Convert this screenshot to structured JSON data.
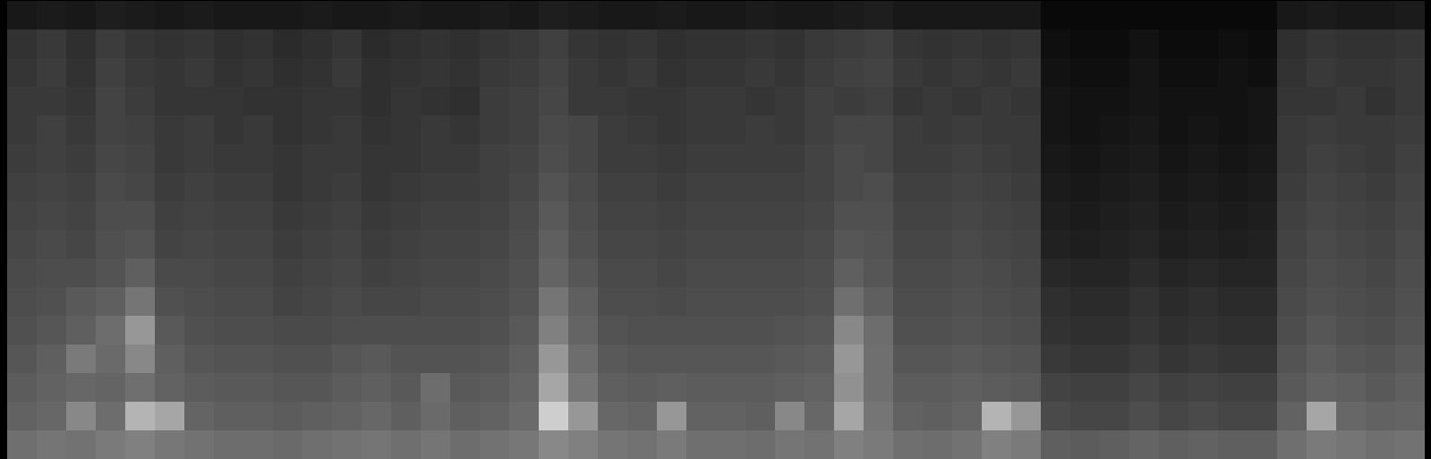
{
  "chart_data": {
    "type": "heatmap",
    "tick_labels": false,
    "color": "greys",
    "zlim": [
      0,
      1
    ],
    "cells": [
      [
        0.08,
        0.09,
        0.08,
        0.1,
        0.09,
        0.08,
        0.09,
        0.08,
        0.08,
        0.08,
        0.09,
        0.08,
        0.08,
        0.09,
        0.08,
        0.08,
        0.09,
        0.08,
        0.1,
        0.09,
        0.08,
        0.08,
        0.09,
        0.08,
        0.08,
        0.09,
        0.08,
        0.08,
        0.09,
        0.1,
        0.08,
        0.08,
        0.08,
        0.08,
        0.08,
        0.03,
        0.03,
        0.03,
        0.03,
        0.03,
        0.03,
        0.03,
        0.03,
        0.08,
        0.09,
        0.08,
        0.08,
        0.09
      ],
      [
        0.16,
        0.18,
        0.15,
        0.19,
        0.17,
        0.16,
        0.17,
        0.15,
        0.16,
        0.14,
        0.15,
        0.17,
        0.14,
        0.15,
        0.16,
        0.15,
        0.17,
        0.18,
        0.2,
        0.17,
        0.16,
        0.17,
        0.15,
        0.16,
        0.16,
        0.17,
        0.16,
        0.18,
        0.19,
        0.2,
        0.17,
        0.16,
        0.17,
        0.16,
        0.17,
        0.05,
        0.04,
        0.04,
        0.06,
        0.04,
        0.04,
        0.05,
        0.04,
        0.15,
        0.17,
        0.16,
        0.16,
        0.17
      ],
      [
        0.17,
        0.19,
        0.16,
        0.2,
        0.18,
        0.17,
        0.18,
        0.16,
        0.17,
        0.15,
        0.16,
        0.18,
        0.15,
        0.16,
        0.17,
        0.16,
        0.18,
        0.19,
        0.21,
        0.18,
        0.17,
        0.18,
        0.16,
        0.17,
        0.17,
        0.18,
        0.17,
        0.19,
        0.2,
        0.21,
        0.18,
        0.17,
        0.18,
        0.17,
        0.18,
        0.06,
        0.05,
        0.05,
        0.07,
        0.05,
        0.05,
        0.06,
        0.05,
        0.16,
        0.18,
        0.17,
        0.17,
        0.18
      ],
      [
        0.18,
        0.18,
        0.17,
        0.21,
        0.19,
        0.17,
        0.17,
        0.17,
        0.16,
        0.16,
        0.17,
        0.17,
        0.15,
        0.17,
        0.16,
        0.15,
        0.19,
        0.2,
        0.22,
        0.18,
        0.18,
        0.17,
        0.17,
        0.18,
        0.18,
        0.17,
        0.18,
        0.2,
        0.19,
        0.2,
        0.17,
        0.18,
        0.17,
        0.18,
        0.17,
        0.07,
        0.06,
        0.06,
        0.07,
        0.06,
        0.06,
        0.06,
        0.07,
        0.17,
        0.17,
        0.18,
        0.16,
        0.18
      ],
      [
        0.18,
        0.2,
        0.18,
        0.21,
        0.2,
        0.18,
        0.19,
        0.17,
        0.18,
        0.16,
        0.17,
        0.18,
        0.16,
        0.17,
        0.18,
        0.17,
        0.19,
        0.2,
        0.23,
        0.22,
        0.19,
        0.18,
        0.17,
        0.18,
        0.18,
        0.19,
        0.18,
        0.2,
        0.22,
        0.22,
        0.19,
        0.18,
        0.19,
        0.18,
        0.18,
        0.07,
        0.06,
        0.07,
        0.08,
        0.06,
        0.07,
        0.06,
        0.07,
        0.18,
        0.19,
        0.18,
        0.18,
        0.19
      ],
      [
        0.19,
        0.2,
        0.19,
        0.22,
        0.21,
        0.18,
        0.19,
        0.18,
        0.18,
        0.17,
        0.18,
        0.18,
        0.17,
        0.17,
        0.18,
        0.18,
        0.2,
        0.21,
        0.24,
        0.22,
        0.19,
        0.19,
        0.18,
        0.19,
        0.19,
        0.19,
        0.19,
        0.21,
        0.23,
        0.22,
        0.19,
        0.19,
        0.2,
        0.19,
        0.18,
        0.08,
        0.07,
        0.08,
        0.09,
        0.07,
        0.08,
        0.07,
        0.08,
        0.18,
        0.2,
        0.19,
        0.18,
        0.2
      ],
      [
        0.2,
        0.21,
        0.2,
        0.23,
        0.22,
        0.19,
        0.2,
        0.19,
        0.19,
        0.17,
        0.18,
        0.19,
        0.17,
        0.18,
        0.19,
        0.19,
        0.2,
        0.22,
        0.26,
        0.23,
        0.2,
        0.2,
        0.19,
        0.2,
        0.2,
        0.2,
        0.2,
        0.21,
        0.23,
        0.24,
        0.2,
        0.2,
        0.21,
        0.2,
        0.19,
        0.09,
        0.08,
        0.09,
        0.1,
        0.08,
        0.09,
        0.08,
        0.09,
        0.19,
        0.21,
        0.2,
        0.19,
        0.21
      ],
      [
        0.21,
        0.22,
        0.21,
        0.24,
        0.24,
        0.2,
        0.21,
        0.2,
        0.2,
        0.18,
        0.19,
        0.2,
        0.18,
        0.19,
        0.2,
        0.2,
        0.21,
        0.23,
        0.28,
        0.24,
        0.21,
        0.21,
        0.2,
        0.21,
        0.21,
        0.21,
        0.21,
        0.22,
        0.25,
        0.25,
        0.21,
        0.21,
        0.22,
        0.21,
        0.2,
        0.1,
        0.09,
        0.1,
        0.11,
        0.09,
        0.1,
        0.09,
        0.1,
        0.2,
        0.22,
        0.21,
        0.2,
        0.22
      ],
      [
        0.22,
        0.23,
        0.22,
        0.25,
        0.26,
        0.21,
        0.22,
        0.21,
        0.21,
        0.19,
        0.2,
        0.21,
        0.19,
        0.2,
        0.21,
        0.21,
        0.22,
        0.24,
        0.3,
        0.25,
        0.22,
        0.22,
        0.21,
        0.22,
        0.22,
        0.22,
        0.22,
        0.23,
        0.27,
        0.26,
        0.22,
        0.22,
        0.23,
        0.22,
        0.21,
        0.11,
        0.1,
        0.11,
        0.12,
        0.1,
        0.11,
        0.1,
        0.11,
        0.21,
        0.23,
        0.22,
        0.21,
        0.23
      ],
      [
        0.23,
        0.24,
        0.24,
        0.26,
        0.3,
        0.23,
        0.23,
        0.22,
        0.22,
        0.2,
        0.21,
        0.22,
        0.2,
        0.21,
        0.22,
        0.22,
        0.23,
        0.25,
        0.32,
        0.27,
        0.23,
        0.23,
        0.22,
        0.23,
        0.23,
        0.23,
        0.23,
        0.24,
        0.3,
        0.27,
        0.23,
        0.23,
        0.24,
        0.23,
        0.22,
        0.13,
        0.12,
        0.12,
        0.14,
        0.12,
        0.13,
        0.12,
        0.12,
        0.22,
        0.24,
        0.23,
        0.22,
        0.24
      ],
      [
        0.24,
        0.25,
        0.28,
        0.3,
        0.38,
        0.25,
        0.24,
        0.23,
        0.23,
        0.21,
        0.22,
        0.23,
        0.22,
        0.22,
        0.23,
        0.23,
        0.24,
        0.26,
        0.38,
        0.3,
        0.24,
        0.24,
        0.23,
        0.24,
        0.24,
        0.24,
        0.24,
        0.25,
        0.36,
        0.3,
        0.24,
        0.24,
        0.25,
        0.24,
        0.23,
        0.15,
        0.14,
        0.14,
        0.16,
        0.14,
        0.15,
        0.14,
        0.14,
        0.23,
        0.25,
        0.24,
        0.23,
        0.25
      ],
      [
        0.25,
        0.27,
        0.3,
        0.35,
        0.5,
        0.28,
        0.25,
        0.24,
        0.24,
        0.23,
        0.23,
        0.24,
        0.24,
        0.24,
        0.24,
        0.24,
        0.25,
        0.28,
        0.42,
        0.32,
        0.26,
        0.25,
        0.25,
        0.25,
        0.25,
        0.25,
        0.26,
        0.27,
        0.45,
        0.35,
        0.25,
        0.25,
        0.26,
        0.25,
        0.24,
        0.16,
        0.15,
        0.15,
        0.17,
        0.15,
        0.16,
        0.15,
        0.15,
        0.24,
        0.27,
        0.25,
        0.24,
        0.26
      ],
      [
        0.27,
        0.3,
        0.4,
        0.34,
        0.45,
        0.3,
        0.27,
        0.26,
        0.26,
        0.25,
        0.25,
        0.27,
        0.28,
        0.26,
        0.26,
        0.26,
        0.27,
        0.3,
        0.5,
        0.35,
        0.28,
        0.27,
        0.27,
        0.27,
        0.27,
        0.27,
        0.28,
        0.29,
        0.5,
        0.36,
        0.27,
        0.27,
        0.28,
        0.27,
        0.26,
        0.18,
        0.17,
        0.17,
        0.19,
        0.17,
        0.18,
        0.17,
        0.17,
        0.26,
        0.29,
        0.27,
        0.26,
        0.28
      ],
      [
        0.29,
        0.31,
        0.33,
        0.32,
        0.36,
        0.31,
        0.29,
        0.28,
        0.28,
        0.27,
        0.27,
        0.29,
        0.3,
        0.28,
        0.35,
        0.28,
        0.29,
        0.32,
        0.55,
        0.38,
        0.3,
        0.29,
        0.3,
        0.29,
        0.29,
        0.29,
        0.3,
        0.31,
        0.48,
        0.36,
        0.29,
        0.29,
        0.3,
        0.29,
        0.28,
        0.21,
        0.2,
        0.2,
        0.22,
        0.2,
        0.21,
        0.2,
        0.2,
        0.28,
        0.31,
        0.3,
        0.28,
        0.3
      ],
      [
        0.31,
        0.33,
        0.45,
        0.35,
        0.6,
        0.55,
        0.32,
        0.3,
        0.3,
        0.29,
        0.3,
        0.31,
        0.33,
        0.3,
        0.34,
        0.3,
        0.31,
        0.34,
        0.7,
        0.5,
        0.33,
        0.32,
        0.5,
        0.31,
        0.31,
        0.3,
        0.45,
        0.33,
        0.55,
        0.38,
        0.31,
        0.3,
        0.32,
        0.6,
        0.5,
        0.23,
        0.22,
        0.22,
        0.24,
        0.22,
        0.23,
        0.22,
        0.22,
        0.31,
        0.55,
        0.33,
        0.31,
        0.32
      ],
      [
        0.36,
        0.38,
        0.37,
        0.4,
        0.42,
        0.39,
        0.37,
        0.35,
        0.35,
        0.34,
        0.36,
        0.37,
        0.38,
        0.36,
        0.38,
        0.35,
        0.37,
        0.39,
        0.45,
        0.42,
        0.38,
        0.37,
        0.4,
        0.36,
        0.36,
        0.35,
        0.38,
        0.37,
        0.42,
        0.4,
        0.36,
        0.35,
        0.37,
        0.42,
        0.4,
        0.3,
        0.29,
        0.3,
        0.32,
        0.3,
        0.31,
        0.3,
        0.3,
        0.36,
        0.4,
        0.38,
        0.36,
        0.37
      ]
    ]
  }
}
